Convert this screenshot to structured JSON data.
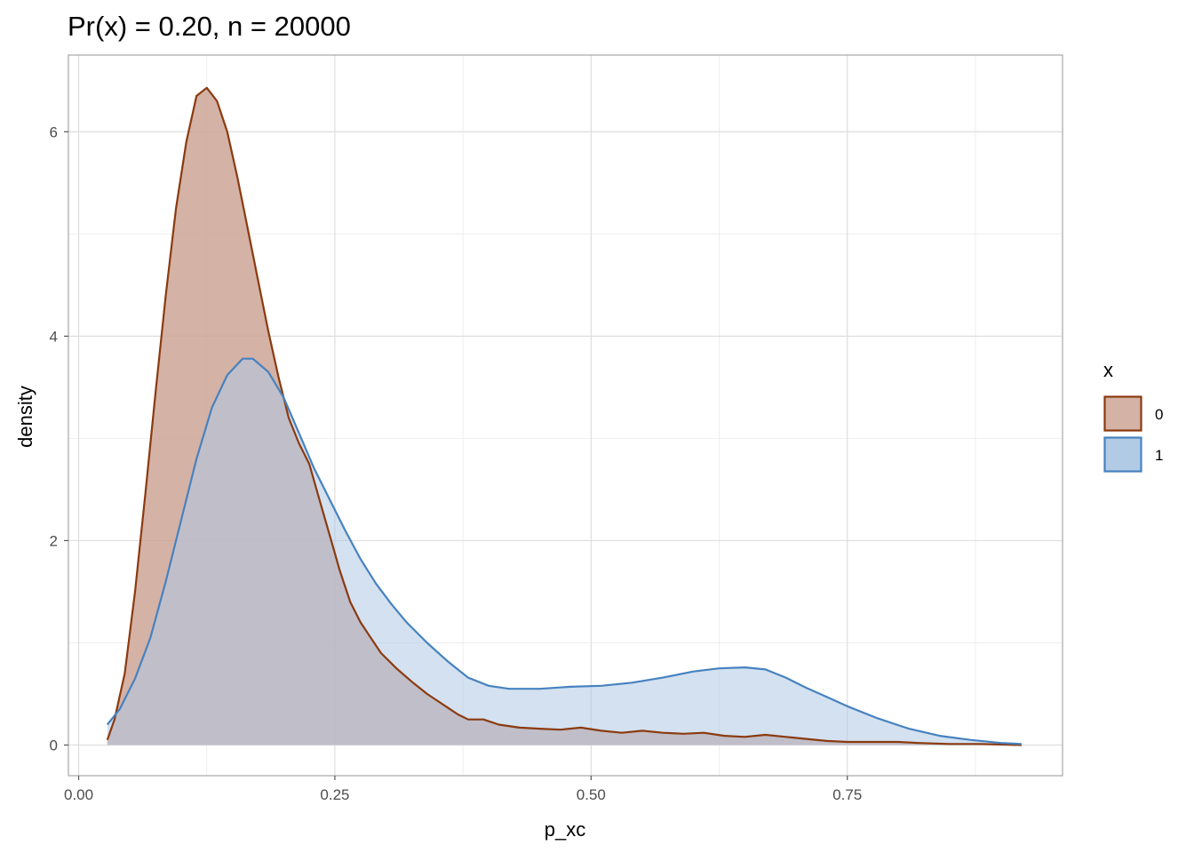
{
  "chart_data": {
    "type": "area",
    "title": "Pr(x) = 0.20, n = 20000",
    "xlabel": "p_xc",
    "ylabel": "density",
    "xlim": [
      -0.01,
      0.96
    ],
    "ylim": [
      -0.3,
      6.75
    ],
    "x_ticks": [
      0.0,
      0.25,
      0.5,
      0.75
    ],
    "x_tick_labels": [
      "0.00",
      "0.25",
      "0.50",
      "0.75"
    ],
    "y_ticks": [
      0,
      2,
      4,
      6
    ],
    "y_tick_labels": [
      "0",
      "2",
      "4",
      "6"
    ],
    "grid": true,
    "legend": {
      "title": "x",
      "placement": "right"
    },
    "series": [
      {
        "name": "0",
        "fill_color": "#cda596",
        "line_color": "#8b3a0f",
        "points": [
          [
            0.028,
            0.05
          ],
          [
            0.035,
            0.25
          ],
          [
            0.045,
            0.7
          ],
          [
            0.055,
            1.5
          ],
          [
            0.065,
            2.45
          ],
          [
            0.075,
            3.45
          ],
          [
            0.085,
            4.4
          ],
          [
            0.095,
            5.25
          ],
          [
            0.105,
            5.9
          ],
          [
            0.115,
            6.35
          ],
          [
            0.125,
            6.43
          ],
          [
            0.135,
            6.3
          ],
          [
            0.145,
            6.0
          ],
          [
            0.155,
            5.55
          ],
          [
            0.165,
            5.05
          ],
          [
            0.175,
            4.55
          ],
          [
            0.185,
            4.05
          ],
          [
            0.195,
            3.6
          ],
          [
            0.205,
            3.2
          ],
          [
            0.215,
            2.95
          ],
          [
            0.225,
            2.75
          ],
          [
            0.235,
            2.4
          ],
          [
            0.245,
            2.05
          ],
          [
            0.255,
            1.7
          ],
          [
            0.265,
            1.4
          ],
          [
            0.275,
            1.2
          ],
          [
            0.285,
            1.05
          ],
          [
            0.295,
            0.9
          ],
          [
            0.31,
            0.75
          ],
          [
            0.325,
            0.62
          ],
          [
            0.34,
            0.5
          ],
          [
            0.355,
            0.4
          ],
          [
            0.37,
            0.3
          ],
          [
            0.38,
            0.25
          ],
          [
            0.395,
            0.25
          ],
          [
            0.41,
            0.2
          ],
          [
            0.43,
            0.17
          ],
          [
            0.45,
            0.16
          ],
          [
            0.47,
            0.15
          ],
          [
            0.49,
            0.17
          ],
          [
            0.51,
            0.14
          ],
          [
            0.53,
            0.12
          ],
          [
            0.55,
            0.14
          ],
          [
            0.57,
            0.12
          ],
          [
            0.59,
            0.11
          ],
          [
            0.61,
            0.12
          ],
          [
            0.63,
            0.09
          ],
          [
            0.65,
            0.08
          ],
          [
            0.67,
            0.1
          ],
          [
            0.69,
            0.08
          ],
          [
            0.71,
            0.06
          ],
          [
            0.73,
            0.04
          ],
          [
            0.75,
            0.03
          ],
          [
            0.78,
            0.03
          ],
          [
            0.8,
            0.03
          ],
          [
            0.82,
            0.02
          ],
          [
            0.85,
            0.01
          ],
          [
            0.88,
            0.01
          ],
          [
            0.92,
            0.0
          ]
        ]
      },
      {
        "name": "1",
        "fill_color": "#aec8e4",
        "line_color": "#4682c0",
        "points": [
          [
            0.028,
            0.2
          ],
          [
            0.04,
            0.35
          ],
          [
            0.055,
            0.65
          ],
          [
            0.07,
            1.05
          ],
          [
            0.085,
            1.6
          ],
          [
            0.1,
            2.2
          ],
          [
            0.115,
            2.8
          ],
          [
            0.13,
            3.3
          ],
          [
            0.145,
            3.62
          ],
          [
            0.16,
            3.78
          ],
          [
            0.17,
            3.78
          ],
          [
            0.185,
            3.65
          ],
          [
            0.2,
            3.4
          ],
          [
            0.215,
            3.05
          ],
          [
            0.23,
            2.7
          ],
          [
            0.245,
            2.4
          ],
          [
            0.26,
            2.1
          ],
          [
            0.275,
            1.82
          ],
          [
            0.29,
            1.58
          ],
          [
            0.305,
            1.38
          ],
          [
            0.32,
            1.2
          ],
          [
            0.34,
            1.0
          ],
          [
            0.36,
            0.82
          ],
          [
            0.38,
            0.66
          ],
          [
            0.4,
            0.58
          ],
          [
            0.42,
            0.55
          ],
          [
            0.45,
            0.55
          ],
          [
            0.48,
            0.57
          ],
          [
            0.51,
            0.58
          ],
          [
            0.54,
            0.61
          ],
          [
            0.57,
            0.66
          ],
          [
            0.6,
            0.72
          ],
          [
            0.625,
            0.75
          ],
          [
            0.65,
            0.76
          ],
          [
            0.67,
            0.74
          ],
          [
            0.69,
            0.66
          ],
          [
            0.71,
            0.56
          ],
          [
            0.73,
            0.47
          ],
          [
            0.75,
            0.38
          ],
          [
            0.78,
            0.26
          ],
          [
            0.81,
            0.16
          ],
          [
            0.84,
            0.09
          ],
          [
            0.87,
            0.05
          ],
          [
            0.9,
            0.02
          ],
          [
            0.92,
            0.01
          ]
        ]
      }
    ]
  }
}
